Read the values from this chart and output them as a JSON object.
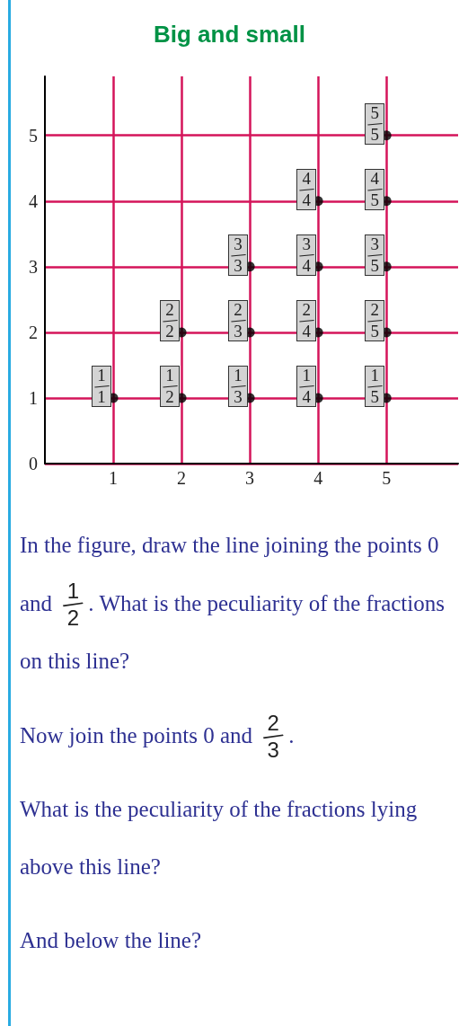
{
  "chart_data": {
    "type": "scatter",
    "title": "Big and small",
    "x": [
      1,
      2,
      2,
      3,
      3,
      3,
      4,
      4,
      4,
      4,
      5,
      5,
      5,
      5,
      5
    ],
    "values": [
      1,
      1,
      2,
      1,
      2,
      3,
      1,
      2,
      3,
      4,
      1,
      2,
      3,
      4,
      5
    ],
    "color": "#000000",
    "marker": "circle",
    "xlim": [
      0,
      6.05
    ],
    "ylim": [
      0,
      5.9
    ],
    "xticks": [
      1,
      2,
      3,
      4,
      5
    ],
    "yticks": [
      0,
      1,
      2,
      3,
      4,
      5
    ],
    "grid": true,
    "annotations": [
      {
        "text": "1/1",
        "x": 1,
        "y": 1
      },
      {
        "text": "1/2",
        "x": 2,
        "y": 1
      },
      {
        "text": "2/2",
        "x": 2,
        "y": 2
      },
      {
        "text": "1/3",
        "x": 3,
        "y": 1
      },
      {
        "text": "2/3",
        "x": 3,
        "y": 2
      },
      {
        "text": "3/3",
        "x": 3,
        "y": 3
      },
      {
        "text": "1/4",
        "x": 4,
        "y": 1
      },
      {
        "text": "2/4",
        "x": 4,
        "y": 2
      },
      {
        "text": "3/4",
        "x": 4,
        "y": 3
      },
      {
        "text": "4/4",
        "x": 4,
        "y": 4
      },
      {
        "text": "1/5",
        "x": 5,
        "y": 1
      },
      {
        "text": "2/5",
        "x": 5,
        "y": 2
      },
      {
        "text": "3/5",
        "x": 5,
        "y": 3
      },
      {
        "text": "4/5",
        "x": 5,
        "y": 4
      },
      {
        "text": "5/5",
        "x": 5,
        "y": 5
      },
      "In the figure, draw the line joining the points 0 and 1/2. What is the peculiarity of the fractions on this line?",
      "Now join the points 0 and 2/3.",
      "What is the peculiarity of the fractions lying above this line?",
      "And below the line?"
    ]
  }
}
